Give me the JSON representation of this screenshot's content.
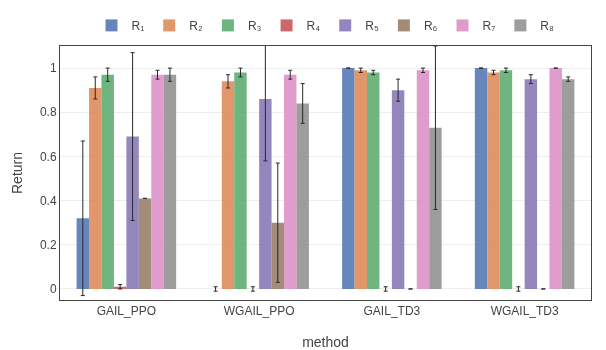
{
  "chart_data": {
    "type": "bar",
    "xlabel": "method",
    "ylabel": "Return",
    "categories": [
      "GAIL_PPO",
      "WGAIL_PPO",
      "GAIL_TD3",
      "WGAIL_TD3"
    ],
    "series": [
      {
        "name": "R₁",
        "color": "#4c72b0",
        "values": [
          0.32,
          0.0,
          1.0,
          1.0
        ],
        "errors": [
          0.35,
          0.01,
          0.0,
          0.0
        ]
      },
      {
        "name": "R₂",
        "color": "#dd8452",
        "values": [
          0.91,
          0.94,
          0.99,
          0.98
        ],
        "errors": [
          0.05,
          0.03,
          0.01,
          0.01
        ]
      },
      {
        "name": "R₃",
        "color": "#55a868",
        "values": [
          0.97,
          0.98,
          0.98,
          0.99
        ],
        "errors": [
          0.03,
          0.02,
          0.01,
          0.01
        ]
      },
      {
        "name": "R₄",
        "color": "#c44e52",
        "values": [
          0.01,
          0.0,
          0.0,
          0.0
        ],
        "errors": [
          0.01,
          0.01,
          0.01,
          0.01
        ]
      },
      {
        "name": "R₅",
        "color": "#8172b2",
        "values": [
          0.69,
          0.86,
          0.9,
          0.95
        ],
        "errors": [
          0.38,
          0.28,
          0.05,
          0.02
        ]
      },
      {
        "name": "R₆",
        "color": "#937860",
        "values": [
          0.41,
          0.3,
          0.0,
          0.0
        ],
        "errors": [
          0.0,
          0.27,
          0.0,
          0.0
        ]
      },
      {
        "name": "R₇",
        "color": "#da8bc3",
        "values": [
          0.97,
          0.97,
          0.99,
          1.0
        ],
        "errors": [
          0.02,
          0.02,
          0.01,
          0.0
        ]
      },
      {
        "name": "R₈",
        "color": "#8c8c8c",
        "values": [
          0.97,
          0.84,
          0.73,
          0.95
        ],
        "errors": [
          0.03,
          0.09,
          0.37,
          0.01
        ]
      }
    ],
    "ylim": [
      -0.05,
      1.1
    ],
    "yticks": [
      0,
      0.2,
      0.4,
      0.6,
      0.8,
      1
    ],
    "grid": true,
    "legend": "top"
  }
}
